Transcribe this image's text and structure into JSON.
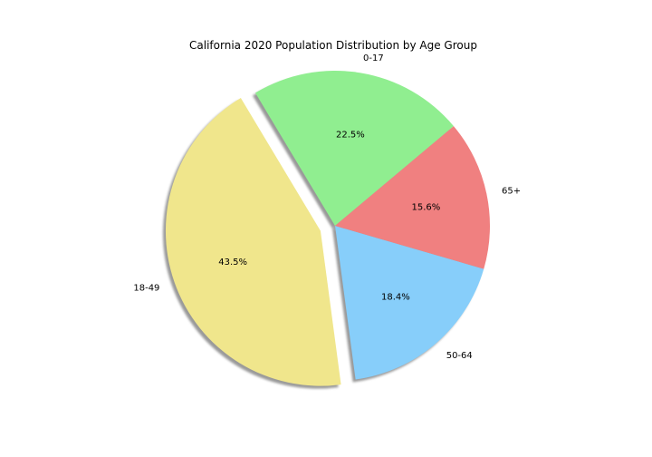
{
  "chart_data": {
    "type": "pie",
    "title": "California 2020 Population Distribution by Age Group",
    "start_angle_deg": 40,
    "counterclockwise": true,
    "shadow": true,
    "explode_index": 1,
    "slices": [
      {
        "label": "0-17",
        "value": 22.5,
        "pct_label": "22.5%",
        "color": "#90ee90"
      },
      {
        "label": "18-49",
        "value": 43.5,
        "pct_label": "43.5%",
        "color": "#f0e68c"
      },
      {
        "label": "50-64",
        "value": 18.4,
        "pct_label": "18.4%",
        "color": "#87cefa"
      },
      {
        "label": "65+",
        "value": 15.6,
        "pct_label": "15.6%",
        "color": "#f08080"
      }
    ]
  }
}
